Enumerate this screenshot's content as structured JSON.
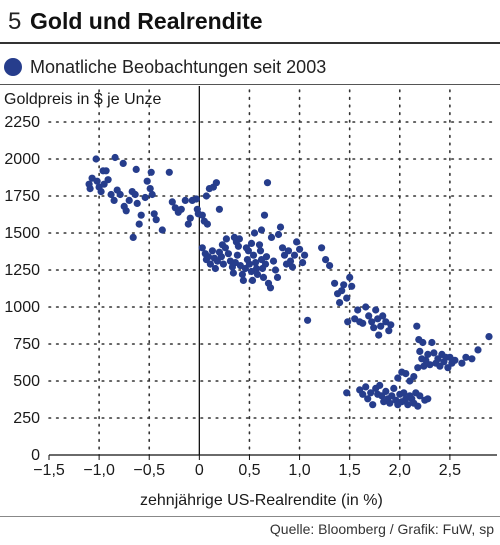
{
  "header": {
    "number": "5",
    "title": "Gold und Realrendite"
  },
  "legend": {
    "label": "Monatliche Beobachtungen seit 2003"
  },
  "source": "Quelle: Bloomberg / Grafik: FuW, sp",
  "colors": {
    "dots": "#263d8c",
    "grid": "#333333",
    "axis": "#111111"
  },
  "chart_data": {
    "type": "scatter",
    "title": "Gold und Realrendite",
    "xlabel": "zehnjährige US-Realrendite (in %)",
    "ylabel": "Goldpreis in $ je Unze",
    "xlim": [
      -1.5,
      2.97
    ],
    "ylim": [
      0,
      2250
    ],
    "x_ticks": [
      -1.5,
      -1.0,
      -0.5,
      0,
      0.5,
      1.0,
      1.5,
      2.0,
      2.5
    ],
    "y_ticks": [
      0,
      250,
      500,
      750,
      1000,
      1250,
      1500,
      1750,
      2000,
      2250
    ],
    "x_tick_labels": [
      "−1,5",
      "−1,0",
      "−0,5",
      "0",
      "0,5",
      "1,0",
      "1,5",
      "2,0",
      "2,5"
    ],
    "y_tick_labels": [
      "0",
      "250",
      "500",
      "750",
      "1000",
      "1250",
      "1500",
      "1750",
      "2000",
      "2250"
    ],
    "grid": true,
    "series": [
      {
        "points": [
          [
            -1.03,
            2000
          ],
          [
            -0.96,
            1920
          ],
          [
            -0.93,
            1920
          ],
          [
            -0.84,
            2010
          ],
          [
            -0.76,
            1970
          ],
          [
            -0.63,
            1930
          ],
          [
            -0.48,
            1910
          ],
          [
            -0.3,
            1910
          ],
          [
            -1.1,
            1830
          ],
          [
            -1.09,
            1800
          ],
          [
            -1.07,
            1870
          ],
          [
            -1.02,
            1850
          ],
          [
            -1.0,
            1810
          ],
          [
            -0.98,
            1780
          ],
          [
            -0.95,
            1830
          ],
          [
            -0.91,
            1860
          ],
          [
            -0.88,
            1760
          ],
          [
            -0.85,
            1720
          ],
          [
            -0.82,
            1790
          ],
          [
            -0.79,
            1760
          ],
          [
            -0.75,
            1680
          ],
          [
            -0.73,
            1650
          ],
          [
            -0.7,
            1720
          ],
          [
            -0.67,
            1780
          ],
          [
            -0.64,
            1760
          ],
          [
            -0.62,
            1700
          ],
          [
            -0.6,
            1560
          ],
          [
            -0.58,
            1620
          ],
          [
            -0.54,
            1740
          ],
          [
            -0.52,
            1850
          ],
          [
            -0.49,
            1800
          ],
          [
            -0.47,
            1760
          ],
          [
            -0.45,
            1630
          ],
          [
            -0.43,
            1590
          ],
          [
            -0.66,
            1470
          ],
          [
            -0.37,
            1520
          ],
          [
            -0.27,
            1710
          ],
          [
            -0.24,
            1670
          ],
          [
            -0.21,
            1640
          ],
          [
            -0.18,
            1660
          ],
          [
            -0.14,
            1720
          ],
          [
            -0.11,
            1560
          ],
          [
            -0.09,
            1600
          ],
          [
            -0.07,
            1720
          ],
          [
            -0.03,
            1730
          ],
          [
            -0.02,
            1660
          ],
          [
            -0.01,
            1630
          ],
          [
            0.03,
            1620
          ],
          [
            0.05,
            1580
          ],
          [
            0.07,
            1750
          ],
          [
            0.08,
            1560
          ],
          [
            0.1,
            1800
          ],
          [
            0.14,
            1810
          ],
          [
            0.17,
            1840
          ],
          [
            0.2,
            1660
          ],
          [
            0.03,
            1400
          ],
          [
            0.06,
            1360
          ],
          [
            0.07,
            1320
          ],
          [
            0.09,
            1340
          ],
          [
            0.11,
            1290
          ],
          [
            0.13,
            1380
          ],
          [
            0.15,
            1330
          ],
          [
            0.16,
            1260
          ],
          [
            0.18,
            1310
          ],
          [
            0.2,
            1370
          ],
          [
            0.22,
            1340
          ],
          [
            0.24,
            1290
          ],
          [
            0.26,
            1400
          ],
          [
            0.27,
            1460
          ],
          [
            0.29,
            1360
          ],
          [
            0.31,
            1310
          ],
          [
            0.33,
            1270
          ],
          [
            0.34,
            1230
          ],
          [
            0.36,
            1300
          ],
          [
            0.38,
            1350
          ],
          [
            0.39,
            1410
          ],
          [
            0.41,
            1280
          ],
          [
            0.43,
            1220
          ],
          [
            0.44,
            1180
          ],
          [
            0.46,
            1260
          ],
          [
            0.48,
            1320
          ],
          [
            0.49,
            1380
          ],
          [
            0.5,
            1290
          ],
          [
            0.52,
            1240
          ],
          [
            0.53,
            1180
          ],
          [
            0.54,
            1350
          ],
          [
            0.56,
            1300
          ],
          [
            0.57,
            1260
          ],
          [
            0.58,
            1220
          ],
          [
            0.6,
            1420
          ],
          [
            0.61,
            1380
          ],
          [
            0.62,
            1320
          ],
          [
            0.63,
            1260
          ],
          [
            0.64,
            1200
          ],
          [
            0.66,
            1290
          ],
          [
            0.67,
            1340
          ],
          [
            0.69,
            1160
          ],
          [
            0.71,
            1130
          ],
          [
            0.72,
            1470
          ],
          [
            0.74,
            1310
          ],
          [
            0.76,
            1250
          ],
          [
            0.78,
            1200
          ],
          [
            0.79,
            1490
          ],
          [
            0.81,
            1540
          ],
          [
            0.83,
            1400
          ],
          [
            0.85,
            1350
          ],
          [
            0.87,
            1290
          ],
          [
            0.89,
            1380
          ],
          [
            0.91,
            1310
          ],
          [
            0.93,
            1270
          ],
          [
            0.95,
            1350
          ],
          [
            0.97,
            1440
          ],
          [
            1.0,
            1390
          ],
          [
            1.03,
            1300
          ],
          [
            1.05,
            1350
          ],
          [
            0.35,
            1470
          ],
          [
            0.4,
            1460
          ],
          [
            0.55,
            1500
          ],
          [
            0.65,
            1620
          ],
          [
            0.68,
            1840
          ],
          [
            0.62,
            1520
          ],
          [
            0.52,
            1430
          ],
          [
            0.47,
            1400
          ],
          [
            0.37,
            1440
          ],
          [
            0.23,
            1420
          ],
          [
            1.08,
            910
          ],
          [
            1.22,
            1400
          ],
          [
            1.26,
            1320
          ],
          [
            1.3,
            1280
          ],
          [
            1.35,
            1160
          ],
          [
            1.38,
            1090
          ],
          [
            1.4,
            1030
          ],
          [
            1.42,
            1110
          ],
          [
            1.44,
            1150
          ],
          [
            1.47,
            1060
          ],
          [
            1.5,
            1200
          ],
          [
            1.52,
            1140
          ],
          [
            1.48,
            900
          ],
          [
            1.55,
            920
          ],
          [
            1.58,
            980
          ],
          [
            1.6,
            900
          ],
          [
            1.63,
            890
          ],
          [
            1.66,
            1000
          ],
          [
            1.69,
            940
          ],
          [
            1.72,
            900
          ],
          [
            1.74,
            860
          ],
          [
            1.76,
            980
          ],
          [
            1.78,
            920
          ],
          [
            1.79,
            810
          ],
          [
            1.81,
            870
          ],
          [
            1.83,
            940
          ],
          [
            1.86,
            900
          ],
          [
            1.89,
            840
          ],
          [
            1.91,
            880
          ],
          [
            1.47,
            420
          ],
          [
            1.6,
            440
          ],
          [
            1.63,
            410
          ],
          [
            1.66,
            460
          ],
          [
            1.68,
            380
          ],
          [
            1.71,
            420
          ],
          [
            1.73,
            340
          ],
          [
            1.76,
            450
          ],
          [
            1.78,
            410
          ],
          [
            1.8,
            470
          ],
          [
            1.82,
            400
          ],
          [
            1.84,
            360
          ],
          [
            1.86,
            430
          ],
          [
            1.88,
            380
          ],
          [
            1.9,
            350
          ],
          [
            1.92,
            400
          ],
          [
            1.94,
            450
          ],
          [
            1.96,
            370
          ],
          [
            1.98,
            340
          ],
          [
            2.0,
            410
          ],
          [
            2.02,
            360
          ],
          [
            2.04,
            420
          ],
          [
            2.06,
            380
          ],
          [
            2.08,
            340
          ],
          [
            2.1,
            400
          ],
          [
            2.12,
            380
          ],
          [
            2.14,
            350
          ],
          [
            2.16,
            420
          ],
          [
            2.18,
            330
          ],
          [
            2.2,
            400
          ],
          [
            2.25,
            370
          ],
          [
            2.28,
            380
          ],
          [
            1.98,
            520
          ],
          [
            2.02,
            560
          ],
          [
            2.06,
            550
          ],
          [
            2.1,
            500
          ],
          [
            2.14,
            530
          ],
          [
            2.18,
            590
          ],
          [
            2.2,
            700
          ],
          [
            2.22,
            650
          ],
          [
            2.24,
            600
          ],
          [
            2.26,
            640
          ],
          [
            2.28,
            680
          ],
          [
            2.3,
            610
          ],
          [
            2.32,
            760
          ],
          [
            2.34,
            690
          ],
          [
            2.36,
            620
          ],
          [
            2.38,
            650
          ],
          [
            2.4,
            600
          ],
          [
            2.42,
            680
          ],
          [
            2.44,
            630
          ],
          [
            2.46,
            660
          ],
          [
            2.48,
            590
          ],
          [
            2.5,
            660
          ],
          [
            2.52,
            620
          ],
          [
            2.55,
            640
          ],
          [
            2.62,
            620
          ],
          [
            2.66,
            660
          ],
          [
            2.72,
            650
          ],
          [
            2.78,
            710
          ],
          [
            2.89,
            800
          ],
          [
            2.17,
            870
          ],
          [
            2.19,
            780
          ],
          [
            2.23,
            760
          ]
        ]
      }
    ]
  }
}
